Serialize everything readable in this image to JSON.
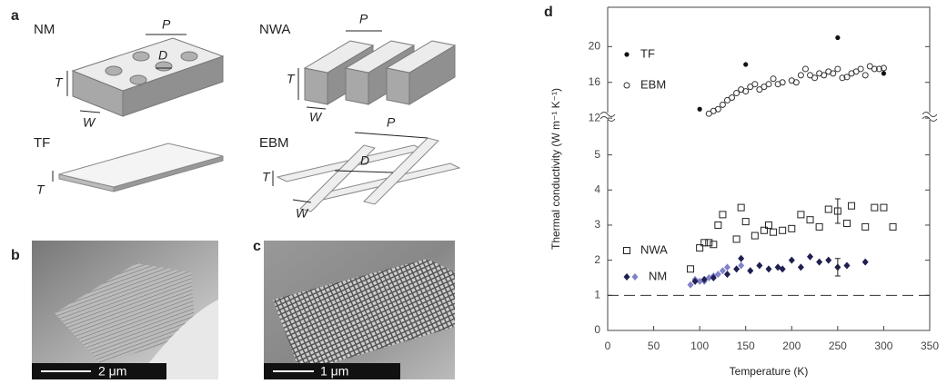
{
  "panels": {
    "a": {
      "label": "a",
      "nm": {
        "title": "NM",
        "p": "P",
        "d": "D",
        "t": "T",
        "w": "W"
      },
      "nwa": {
        "title": "NWA",
        "p": "P",
        "t": "T",
        "w": "W"
      },
      "tf": {
        "title": "TF",
        "t": "T"
      },
      "ebm": {
        "title": "EBM",
        "p": "P",
        "d": "D",
        "t": "T",
        "w": "W"
      }
    },
    "b": {
      "label": "b",
      "scale": "2 μm"
    },
    "c": {
      "label": "c",
      "scale": "1 μm"
    },
    "d": {
      "label": "d"
    }
  },
  "chart_data": {
    "type": "scatter",
    "xlabel": "Temperature (K)",
    "ylabel": "Thermal conductivity (W m⁻¹ K⁻¹)",
    "xlim": [
      0,
      350
    ],
    "xticks": [
      0,
      50,
      100,
      150,
      200,
      250,
      300,
      350
    ],
    "ylim": [
      0,
      5.74
    ],
    "yticks": [
      0,
      1,
      2,
      3,
      4,
      5
    ],
    "ylim_upper": [
      11.2,
      24.4
    ],
    "yticks_upper": [
      12,
      16,
      20
    ],
    "reference_line": 1,
    "series": [
      {
        "name": "TF",
        "color": "#111111",
        "marker": "circle-filled",
        "panel": "upper",
        "x": [
          100,
          150,
          250,
          300
        ],
        "values": [
          13.0,
          18.0,
          21.0,
          17.0
        ]
      },
      {
        "name": "EBM",
        "color": "#333333",
        "marker": "circle-open",
        "panel": "upper",
        "x": [
          110,
          115,
          120,
          125,
          130,
          135,
          140,
          145,
          150,
          155,
          160,
          165,
          170,
          175,
          180,
          185,
          190,
          200,
          205,
          210,
          215,
          220,
          225,
          230,
          235,
          240,
          245,
          250,
          255,
          260,
          265,
          270,
          275,
          280,
          285,
          290,
          295,
          300
        ],
        "values": [
          12.5,
          12.8,
          13.0,
          13.5,
          14.0,
          14.3,
          14.8,
          15.2,
          15.0,
          15.5,
          15.8,
          15.2,
          15.5,
          15.8,
          16.4,
          15.8,
          16.0,
          16.2,
          16.0,
          16.8,
          17.5,
          16.8,
          16.5,
          17.0,
          16.8,
          17.2,
          17.0,
          17.5,
          16.5,
          16.6,
          17.0,
          17.2,
          17.5,
          16.8,
          17.8,
          17.5,
          17.5,
          17.6
        ]
      },
      {
        "name": "NWA",
        "color": "#222222",
        "marker": "square-open",
        "panel": "lower",
        "x": [
          90,
          100,
          105,
          110,
          115,
          120,
          125,
          140,
          145,
          150,
          160,
          170,
          175,
          180,
          190,
          200,
          210,
          220,
          230,
          240,
          250,
          260,
          265,
          280,
          290,
          300,
          310
        ],
        "values": [
          1.75,
          2.35,
          2.5,
          2.5,
          2.45,
          3.0,
          3.3,
          2.6,
          3.5,
          3.1,
          2.7,
          2.85,
          3.0,
          2.8,
          2.85,
          2.9,
          3.3,
          3.15,
          2.95,
          3.45,
          3.4,
          3.05,
          3.55,
          2.95,
          3.5,
          3.5,
          2.95
        ],
        "errors": [
          null,
          null,
          null,
          null,
          null,
          null,
          null,
          null,
          null,
          null,
          null,
          null,
          null,
          null,
          null,
          null,
          null,
          null,
          null,
          null,
          0.35,
          null,
          null,
          null,
          null,
          null,
          null
        ]
      },
      {
        "name": "NM",
        "color": "#1f1f50",
        "marker": "diamond",
        "panel": "lower",
        "colors": [
          "#8282c8",
          "#8282c8",
          "#8282c8",
          "#8282c8",
          "#8282c8",
          "#8282c8",
          "#8282c8",
          "#8282c8",
          "#8282c8",
          "#8282c8",
          "#1f1f50",
          "#1f1f50",
          "#1f1f50",
          "#1f1f50",
          "#1f1f50",
          "#1f1f50",
          "#1f1f50",
          "#1f1f50",
          "#1f1f50",
          "#1f1f50",
          "#1f1f50",
          "#1f1f50",
          "#1f1f50",
          "#1f1f50",
          "#1f1f50",
          "#1f1f50",
          "#1f1f50",
          "#1f1f50",
          "#1f1f50"
        ],
        "x": [
          90,
          95,
          100,
          105,
          110,
          115,
          120,
          125,
          130,
          145,
          95,
          105,
          115,
          130,
          140,
          145,
          155,
          165,
          175,
          185,
          190,
          200,
          210,
          220,
          230,
          240,
          250,
          260,
          280
        ],
        "values": [
          1.3,
          1.45,
          1.4,
          1.4,
          1.5,
          1.55,
          1.6,
          1.7,
          1.8,
          1.85,
          1.4,
          1.45,
          1.5,
          1.6,
          1.75,
          2.05,
          1.7,
          1.85,
          1.75,
          1.8,
          1.75,
          2.0,
          1.8,
          2.1,
          1.95,
          2.0,
          1.8,
          1.85,
          1.95
        ],
        "errors": [
          null,
          null,
          null,
          null,
          null,
          null,
          null,
          null,
          null,
          null,
          null,
          null,
          null,
          null,
          null,
          null,
          null,
          null,
          null,
          null,
          null,
          null,
          null,
          null,
          null,
          null,
          0.25,
          null,
          null
        ]
      }
    ]
  }
}
